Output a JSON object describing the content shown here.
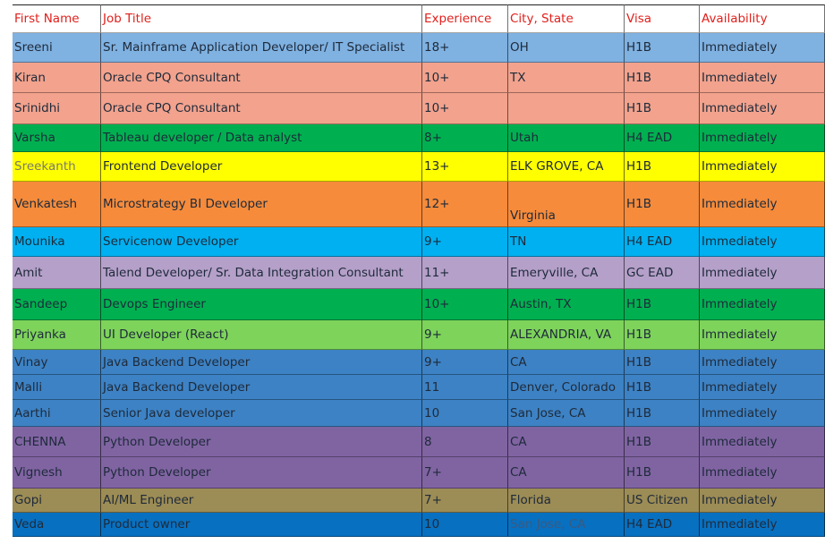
{
  "table": {
    "header": [
      "First Name",
      "Job Title",
      "Experience",
      "City, State",
      "Visa",
      "Availability"
    ],
    "rows": [
      {
        "color": "#7fb1e1",
        "cells": [
          "Sreeni",
          "Sr. Mainframe Application Developer/ IT Specialist",
          "18+",
          "OH",
          "H1B",
          "Immediately"
        ]
      },
      {
        "color": "#f2a28d",
        "cells": [
          "Kiran",
          "Oracle CPQ Consultant",
          "10+",
          "TX",
          "H1B",
          "Immediately"
        ]
      },
      {
        "color": "#f2a28d",
        "cells": [
          "Srinidhi",
          "Oracle CPQ Consultant",
          "10+",
          "",
          "H1B",
          "Immediately"
        ]
      },
      {
        "color": "#00b050",
        "cells": [
          "Varsha",
          "Tableau developer / Data analyst",
          "8+",
          "Utah",
          "H4 EAD",
          "Immediately"
        ]
      },
      {
        "color": "#ffff00",
        "cells": [
          "Sreekanth",
          "Frontend Developer",
          "13+",
          "ELK GROVE, CA",
          "H1B",
          "Immediately"
        ]
      },
      {
        "color": "#f58b3b",
        "cells": [
          "Venkatesh",
          "Microstrategy BI Developer",
          "12+",
          "Virginia",
          "H1B",
          "Immediately"
        ]
      },
      {
        "color": "#00b0f0",
        "cells": [
          "Mounika",
          "Servicenow Developer",
          "9+",
          "TN",
          "H4 EAD",
          "Immediately"
        ]
      },
      {
        "color": "#b5a0c9",
        "cells": [
          "Amit",
          "Talend Developer/ Sr. Data Integration Consultant",
          "11+",
          "Emeryville, CA",
          "GC EAD",
          "Immediately"
        ]
      },
      {
        "color": "#00b050",
        "cells": [
          "Sandeep",
          "Devops Engineer",
          "10+",
          "Austin, TX",
          "H1B",
          "Immediately"
        ]
      },
      {
        "color": "#7ed35b",
        "cells": [
          "Priyanka",
          "UI Developer (React)",
          "9+",
          "ALEXANDRIA, VA",
          "H1B",
          "Immediately"
        ]
      },
      {
        "color": "#3d82c4",
        "cells": [
          "Vinay",
          "Java Backend Developer",
          "9+",
          "CA",
          "H1B",
          "Immediately"
        ]
      },
      {
        "color": "#3d82c4",
        "cells": [
          "Malli",
          "Java Backend Developer",
          "11",
          "Denver, Colorado",
          "H1B",
          "Immediately"
        ]
      },
      {
        "color": "#3d82c4",
        "cells": [
          "Aarthi",
          "Senior Java developer",
          "10",
          "San Jose, CA",
          "H1B",
          "Immediately"
        ]
      },
      {
        "color": "#8064a2",
        "cells": [
          "CHENNA",
          "Python Developer",
          "8",
          "CA",
          "H1B",
          "Immediately"
        ]
      },
      {
        "color": "#8064a2",
        "cells": [
          "Vignesh",
          "Python Developer",
          "7+",
          "CA",
          "H1B",
          "Immediately"
        ]
      },
      {
        "color": "#9c8c55",
        "cells": [
          "Gopi",
          "AI/ML Engineer",
          "7+",
          "Florida",
          "US Citizen",
          "Immediately"
        ]
      },
      {
        "color": "#0870c0",
        "cells": [
          "Veda",
          "Product owner",
          "10",
          "San Jose, CA",
          "H4 EAD",
          "Immediately"
        ]
      }
    ]
  }
}
